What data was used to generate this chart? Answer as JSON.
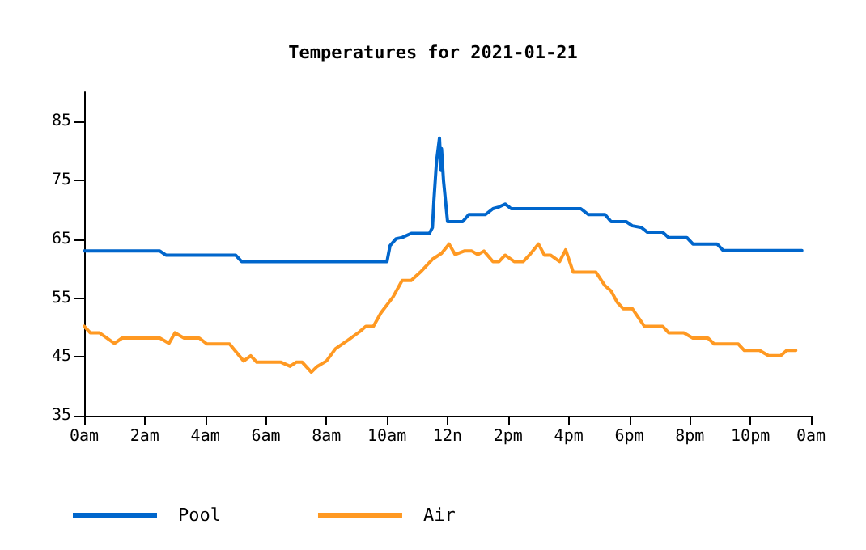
{
  "chart_data": {
    "type": "line",
    "title": "Temperatures for 2021-01-21",
    "xlim": [
      "2021-01-21T00:00",
      "2021-01-22T00:00"
    ],
    "xticks": [
      {
        "value": "2021-01-21T00:00",
        "label": "0am"
      },
      {
        "value": "2021-01-21T02:00",
        "label": "2am"
      },
      {
        "value": "2021-01-21T04:00",
        "label": "4am"
      },
      {
        "value": "2021-01-21T06:00",
        "label": "6am"
      },
      {
        "value": "2021-01-21T08:00",
        "label": "8am"
      },
      {
        "value": "2021-01-21T10:00",
        "label": "10am"
      },
      {
        "value": "2021-01-21T12:00",
        "label": "12n"
      },
      {
        "value": "2021-01-21T14:00",
        "label": "2pm"
      },
      {
        "value": "2021-01-21T16:00",
        "label": "4pm"
      },
      {
        "value": "2021-01-21T18:00",
        "label": "6pm"
      },
      {
        "value": "2021-01-21T20:00",
        "label": "8pm"
      },
      {
        "value": "2021-01-21T22:00",
        "label": "10pm"
      },
      {
        "value": "2021-01-22T00:00",
        "label": "0am"
      }
    ],
    "ylim": [
      35,
      90
    ],
    "yticks": [
      35,
      45,
      55,
      65,
      75,
      85
    ],
    "grid": false,
    "legend": "bottom left",
    "marker": "none",
    "line_style": "solid",
    "series": [
      {
        "name": "Pool",
        "color": "#0066cc",
        "x": [
          "2021-01-21T00:00",
          "2021-01-21T02:30",
          "2021-01-21T02:42",
          "2021-01-21T05:00",
          "2021-01-21T05:12",
          "2021-01-21T10:00",
          "2021-01-21T10:06",
          "2021-01-21T10:18",
          "2021-01-21T10:30",
          "2021-01-21T10:48",
          "2021-01-21T11:24",
          "2021-01-21T11:30",
          "2021-01-21T11:33",
          "2021-01-21T11:38",
          "2021-01-21T11:44",
          "2021-01-21T11:47",
          "2021-01-21T11:48",
          "2021-01-21T11:52",
          "2021-01-21T12:00",
          "2021-01-21T12:30",
          "2021-01-21T12:42",
          "2021-01-21T13:15",
          "2021-01-21T13:30",
          "2021-01-21T13:42",
          "2021-01-21T13:54",
          "2021-01-21T14:06",
          "2021-01-21T16:24",
          "2021-01-21T16:39",
          "2021-01-21T17:12",
          "2021-01-21T17:24",
          "2021-01-21T17:54",
          "2021-01-21T18:06",
          "2021-01-21T18:24",
          "2021-01-21T18:36",
          "2021-01-21T19:06",
          "2021-01-21T19:18",
          "2021-01-21T19:54",
          "2021-01-21T20:06",
          "2021-01-21T20:54",
          "2021-01-21T21:06",
          "2021-01-21T23:42"
        ],
        "values": [
          63,
          63,
          62.3,
          62.3,
          61.2,
          61.2,
          63.9,
          65.1,
          65.3,
          66,
          66,
          67,
          71.7,
          78.1,
          82.2,
          76.7,
          80.4,
          74.9,
          68,
          68,
          69.2,
          69.2,
          70.2,
          70.5,
          71,
          70.2,
          70.2,
          69.2,
          69.2,
          68,
          68,
          67.3,
          67,
          66.2,
          66.2,
          65.3,
          65.3,
          64.2,
          64.2,
          63.1,
          63.1
        ]
      },
      {
        "name": "Air",
        "color": "#ff9922",
        "x": [
          "2021-01-21T00:00",
          "2021-01-21T00:12",
          "2021-01-21T00:30",
          "2021-01-21T00:42",
          "2021-01-21T01:00",
          "2021-01-21T01:15",
          "2021-01-21T02:30",
          "2021-01-21T02:48",
          "2021-01-21T03:00",
          "2021-01-21T03:18",
          "2021-01-21T03:48",
          "2021-01-21T04:03",
          "2021-01-21T04:48",
          "2021-01-21T05:16",
          "2021-01-21T05:30",
          "2021-01-21T05:42",
          "2021-01-21T06:30",
          "2021-01-21T06:48",
          "2021-01-21T07:00",
          "2021-01-21T07:12",
          "2021-01-21T07:30",
          "2021-01-21T07:42",
          "2021-01-21T08:00",
          "2021-01-21T08:18",
          "2021-01-21T08:42",
          "2021-01-21T09:06",
          "2021-01-21T09:18",
          "2021-01-21T09:33",
          "2021-01-21T09:48",
          "2021-01-21T10:12",
          "2021-01-21T10:30",
          "2021-01-21T10:48",
          "2021-01-21T11:06",
          "2021-01-21T11:30",
          "2021-01-21T11:48",
          "2021-01-21T12:03",
          "2021-01-21T12:15",
          "2021-01-21T12:33",
          "2021-01-21T12:48",
          "2021-01-21T13:00",
          "2021-01-21T13:12",
          "2021-01-21T13:30",
          "2021-01-21T13:42",
          "2021-01-21T13:54",
          "2021-01-21T14:12",
          "2021-01-21T14:30",
          "2021-01-21T14:42",
          "2021-01-21T15:00",
          "2021-01-21T15:12",
          "2021-01-21T15:24",
          "2021-01-21T15:42",
          "2021-01-21T15:54",
          "2021-01-21T16:09",
          "2021-01-21T16:54",
          "2021-01-21T17:12",
          "2021-01-21T17:24",
          "2021-01-21T17:36",
          "2021-01-21T17:48",
          "2021-01-21T18:06",
          "2021-01-21T18:30",
          "2021-01-21T19:06",
          "2021-01-21T19:18",
          "2021-01-21T19:48",
          "2021-01-21T20:06",
          "2021-01-21T20:36",
          "2021-01-21T20:48",
          "2021-01-21T21:36",
          "2021-01-21T21:48",
          "2021-01-21T22:18",
          "2021-01-21T22:36",
          "2021-01-21T23:00",
          "2021-01-21T23:12",
          "2021-01-21T23:30"
        ],
        "values": [
          50.2,
          49.1,
          49.1,
          48.4,
          47.3,
          48.2,
          48.2,
          47.3,
          49.1,
          48.2,
          48.2,
          47.2,
          47.2,
          44.3,
          45.2,
          44.1,
          44.1,
          43.4,
          44.1,
          44.1,
          42.4,
          43.4,
          44.3,
          46.4,
          47.8,
          49.3,
          50.2,
          50.2,
          52.5,
          55.2,
          58,
          58,
          59.4,
          61.6,
          62.6,
          64.2,
          62.4,
          63,
          63,
          62.4,
          63,
          61.2,
          61.2,
          62.3,
          61.2,
          61.2,
          62.3,
          64.2,
          62.3,
          62.3,
          61.2,
          63.2,
          59.4,
          59.4,
          57.1,
          56.2,
          54.3,
          53.2,
          53.2,
          50.2,
          50.2,
          49.1,
          49.1,
          48.2,
          48.2,
          47.2,
          47.2,
          46.1,
          46.1,
          45.2,
          45.2,
          46.1,
          46.1
        ]
      }
    ]
  }
}
